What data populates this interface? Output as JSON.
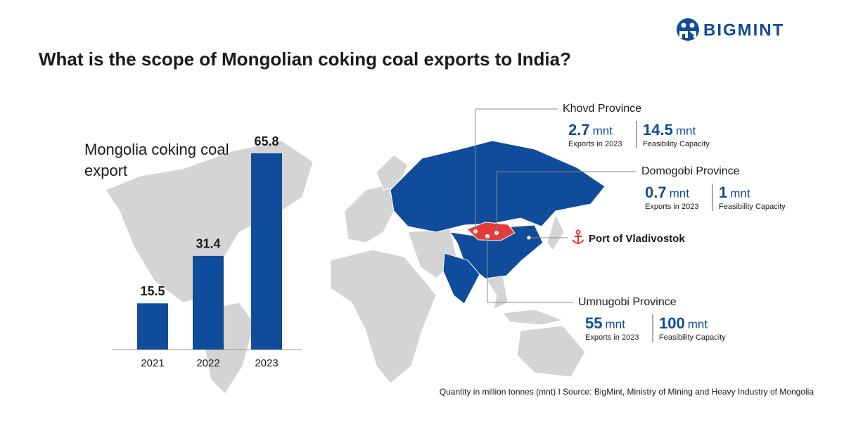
{
  "brand": "BIGMINT",
  "title": "What is the scope of Mongolian coking coal exports to India?",
  "chart_data": {
    "type": "bar",
    "title": "Mongolia coking coal export",
    "categories": [
      "2021",
      "2022",
      "2023"
    ],
    "values": [
      15.5,
      31.4,
      65.8
    ],
    "color": "#0f4c9c"
  },
  "provinces": [
    {
      "name": "Khovd Province",
      "exports": 2.7,
      "exports_unit": "mnt",
      "exports_label": "Exports in 2023",
      "capacity": 14.5,
      "capacity_unit": "mnt",
      "capacity_label": "Feasibility Capacity"
    },
    {
      "name": "Domogobi Province",
      "exports": 0.7,
      "exports_unit": "mnt",
      "exports_label": "Exports in 2023",
      "capacity": 1,
      "capacity_unit": "mnt",
      "capacity_label": "Feasibility Capacity"
    },
    {
      "name": "Umnugobi Province",
      "exports": 55,
      "exports_unit": "mnt",
      "exports_label": "Exports in 2023",
      "capacity": 100,
      "capacity_unit": "mnt",
      "capacity_label": "Feasibility Capacity"
    }
  ],
  "port": "Port of Vladivostok",
  "footnote": "Quantity in million tonnes (mnt)  I  Source: BigMint, Ministry of Mining and Heavy Industry of Mongolia"
}
